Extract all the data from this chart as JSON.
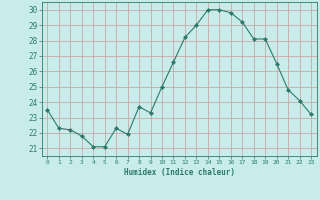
{
  "x": [
    0,
    1,
    2,
    3,
    4,
    5,
    6,
    7,
    8,
    9,
    10,
    11,
    12,
    13,
    14,
    15,
    16,
    17,
    18,
    19,
    20,
    21,
    22,
    23
  ],
  "y": [
    23.5,
    22.3,
    22.2,
    21.8,
    21.1,
    21.1,
    22.3,
    21.9,
    23.7,
    23.3,
    25.0,
    26.6,
    28.2,
    29.0,
    30.0,
    30.0,
    29.8,
    29.2,
    28.1,
    28.1,
    26.5,
    24.8,
    24.1,
    23.2
  ],
  "line_color": "#2d7a6a",
  "marker": "D",
  "marker_size": 2.0,
  "bg_color": "#c8ecea",
  "grid_color": "#c8a8a8",
  "tick_color": "#2d7a6a",
  "xlabel": "Humidex (Indice chaleur)",
  "ylabel_ticks": [
    21,
    22,
    23,
    24,
    25,
    26,
    27,
    28,
    29,
    30
  ],
  "xlim": [
    -0.5,
    23.5
  ],
  "ylim": [
    20.5,
    30.5
  ],
  "xticks": [
    0,
    1,
    2,
    3,
    4,
    5,
    6,
    7,
    8,
    9,
    10,
    11,
    12,
    13,
    14,
    15,
    16,
    17,
    18,
    19,
    20,
    21,
    22,
    23
  ]
}
